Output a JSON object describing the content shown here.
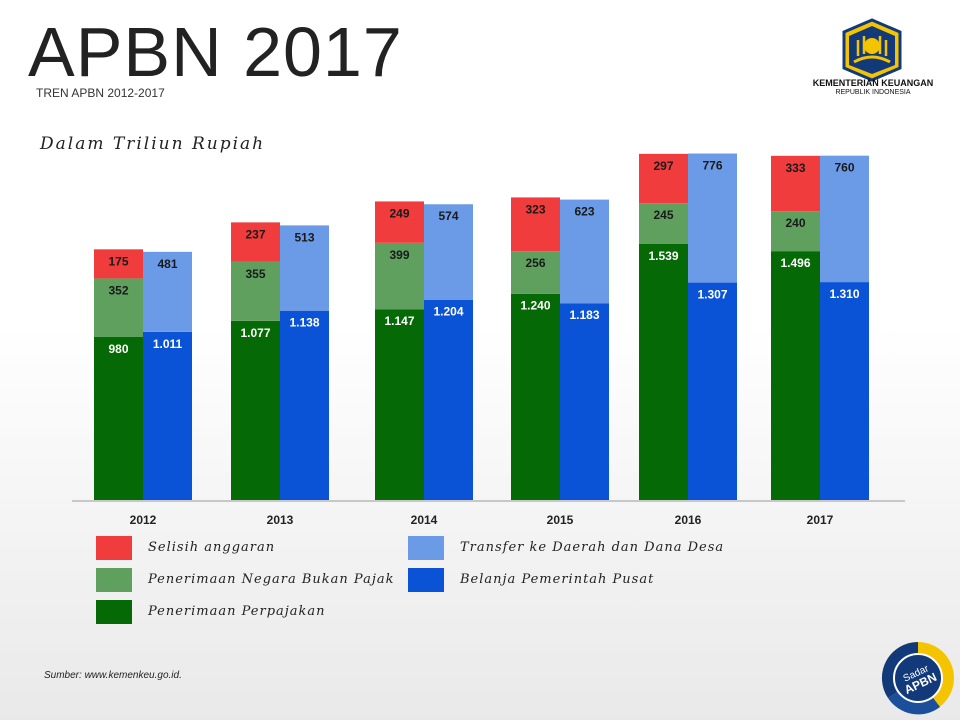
{
  "header": {
    "title": "APBN 2017",
    "subtitle": "TREN APBN 2012-2017",
    "unit_label": "Dalam  Triliun  Rupiah"
  },
  "logo": {
    "name": "KEMENTERIAN KEUANGAN",
    "subname": "REPUBLIK INDONESIA",
    "icon": "ministry-emblem-icon"
  },
  "badge": {
    "text_line1": "Sadar",
    "text_line2": "APBN",
    "icon": "sadar-apbn-badge-icon"
  },
  "source": "Sumber: www.kemenkeu.go.id.",
  "colors": {
    "selisih": "#f03c3c",
    "pnbp": "#5fa05f",
    "pajak": "#056a05",
    "transfer": "#6b9be6",
    "belanja": "#0a53d6"
  },
  "legend": [
    {
      "key": "selisih",
      "label": "Selisih anggaran"
    },
    {
      "key": "pnbp",
      "label": "Penerimaan Negara Bukan Pajak"
    },
    {
      "key": "pajak",
      "label": "Penerimaan Perpajakan"
    },
    {
      "key": "transfer",
      "label": "Transfer ke Daerah dan Dana Desa"
    },
    {
      "key": "belanja",
      "label": "Belanja Pemerintah Pusat"
    }
  ],
  "chart_data": {
    "type": "bar",
    "stacked": true,
    "categories": [
      "2012",
      "2013",
      "2014",
      "2015",
      "2016",
      "2017"
    ],
    "stacks": [
      {
        "name": "revenue",
        "series": [
          {
            "key": "pajak",
            "name": "Penerimaan Perpajakan",
            "values": [
              980,
              1077,
              1147,
              1240,
              1539,
              1496
            ],
            "labels": [
              "980",
              "1.077",
              "1.147",
              "1.240",
              "1.539",
              "1.496"
            ]
          },
          {
            "key": "pnbp",
            "name": "Penerimaan Negara Bukan Pajak",
            "values": [
              352,
              355,
              399,
              256,
              245,
              240
            ],
            "labels": [
              "352",
              "355",
              "399",
              "256",
              "245",
              "240"
            ]
          },
          {
            "key": "selisih",
            "name": "Selisih anggaran",
            "values": [
              175,
              237,
              249,
              323,
              297,
              333
            ],
            "labels": [
              "175",
              "237",
              "249",
              "323",
              "297",
              "333"
            ]
          }
        ]
      },
      {
        "name": "expenditure",
        "series": [
          {
            "key": "belanja",
            "name": "Belanja Pemerintah Pusat",
            "values": [
              1011,
              1138,
              1204,
              1183,
              1307,
              1310
            ],
            "labels": [
              "1.011",
              "1.138",
              "1.204",
              "1.183",
              "1.307",
              "1.310"
            ]
          },
          {
            "key": "transfer",
            "name": "Transfer ke Daerah dan Dana Desa",
            "values": [
              481,
              513,
              574,
              623,
              776,
              760
            ],
            "labels": [
              "481",
              "513",
              "574",
              "623",
              "776",
              "760"
            ]
          }
        ]
      }
    ],
    "ylim": [
      0,
      2100
    ],
    "grid": false,
    "legend_position": "bottom-left"
  }
}
